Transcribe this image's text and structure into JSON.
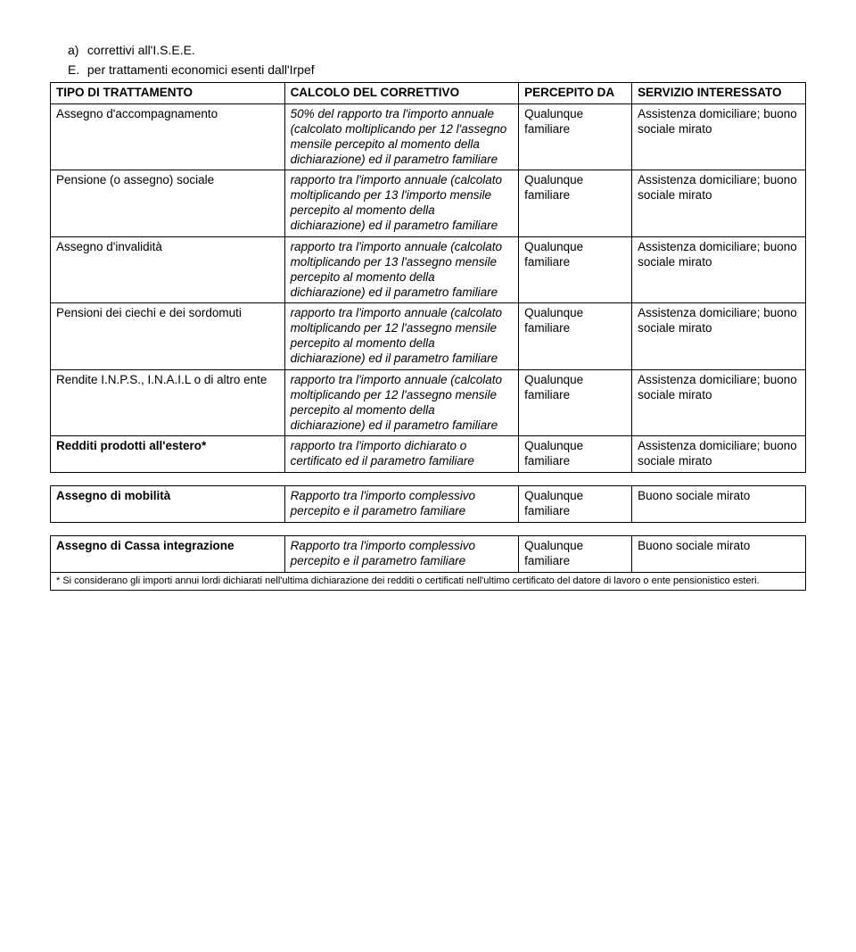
{
  "heading": {
    "a_label": "a)",
    "a_text": "correttivi all'I.S.E.E.",
    "e_label": "E.",
    "e_text": "per trattamenti economici esenti dall'Irpef"
  },
  "headers": {
    "col1": "TIPO DI TRATTAMENTO",
    "col2": "CALCOLO DEL CORRETTIVO",
    "col3": "PERCEPITO DA",
    "col4": "SERVIZIO INTERESSATO"
  },
  "rows": [
    {
      "c1": "Assegno d'accompagnamento",
      "c2": "50% del rapporto tra l'importo annuale (calcolato moltiplicando per 12 l'assegno mensile percepito al momento della dichiarazione) ed il parametro familiare",
      "c3": "Qualunque familiare",
      "c4": "Assistenza domiciliare; buono sociale mirato"
    },
    {
      "c1": "Pensione (o assegno) sociale",
      "c2": "rapporto tra l'importo annuale (calcolato moltiplicando per 13 l'importo mensile percepito al momento della dichiarazione) ed il parametro familiare",
      "c3": "Qualunque familiare",
      "c4": "Assistenza domiciliare; buono sociale mirato"
    },
    {
      "c1": "Assegno d'invalidità",
      "c2": "rapporto tra l'importo annuale (calcolato moltiplicando per 13 l'assegno mensile percepito al momento della dichiarazione) ed il parametro familiare",
      "c3": "Qualunque familiare",
      "c4": "Assistenza domiciliare; buono sociale mirato"
    },
    {
      "c1": "Pensioni dei ciechi e dei sordomuti",
      "c2": "rapporto tra l'importo annuale (calcolato moltiplicando per 12 l'assegno mensile percepito al momento della dichiarazione) ed il parametro familiare",
      "c3": "Qualunque familiare",
      "c4": "Assistenza domiciliare; buono sociale mirato"
    },
    {
      "c1": "Rendite I.N.P.S., I.N.A.I.L o di altro ente",
      "c2": "rapporto tra l'importo annuale (calcolato moltiplicando per 12 l'assegno mensile percepito al momento della dichiarazione) ed il parametro familiare",
      "c3": "Qualunque familiare",
      "c4": "Assistenza domiciliare; buono sociale mirato"
    },
    {
      "c1_html": "<b>Redditi prodotti all'estero*</b>",
      "c2": "rapporto tra l'importo dichiarato o certificato ed il parametro familiare",
      "c3": "Qualunque familiare",
      "c4": "Assistenza domiciliare; buono sociale mirato"
    }
  ],
  "row_mobilita": {
    "c1": "Assegno di mobilità",
    "c2": "Rapporto tra l'importo complessivo percepito e il parametro familiare",
    "c3": "Qualunque familiare",
    "c4": "Buono sociale mirato"
  },
  "row_cassa": {
    "c1": "Assegno di Cassa integrazione",
    "c2": "Rapporto tra l'importo complessivo percepito e il parametro familiare",
    "c3": "Qualunque familiare",
    "c4": "Buono sociale mirato"
  },
  "footnote": "* Si considerano gli importi annui lordi dichiarati nell'ultima dichiarazione dei redditi o certificati nell'ultimo certificato del datore di lavoro o ente pensionistico esteri."
}
